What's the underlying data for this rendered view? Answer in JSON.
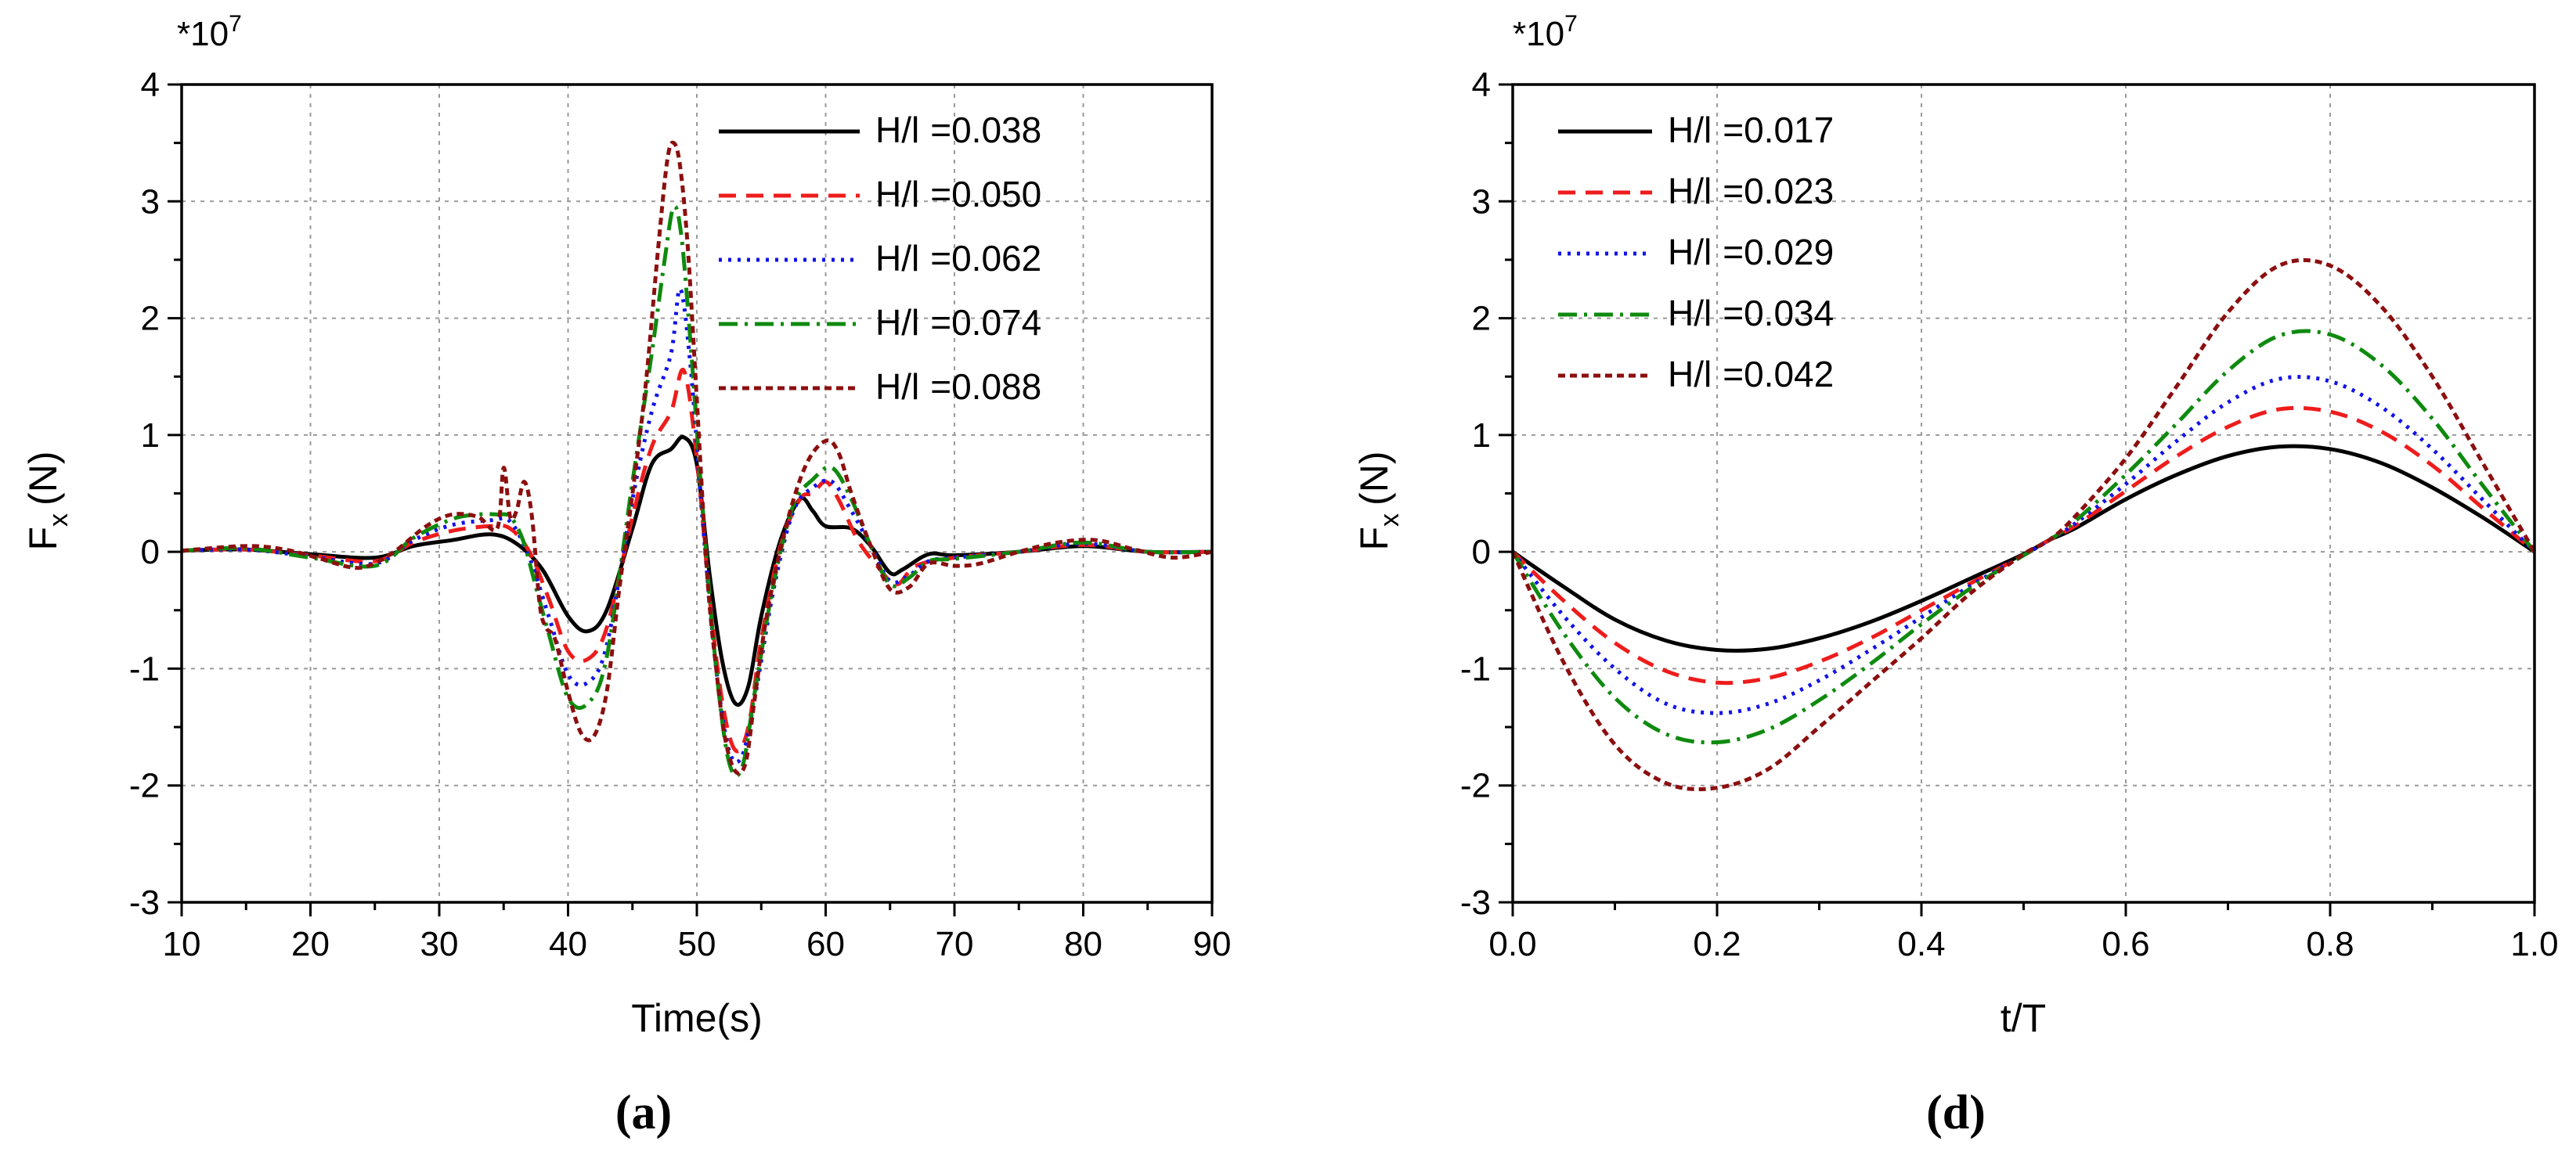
{
  "chart_data": [
    {
      "type": "line",
      "panel_label": "(a)",
      "xlabel": "Time(s)",
      "ylabel": "F",
      "ylabel_sub": "x",
      "ylabel_unit": "(N)",
      "y_scale_label": "*10",
      "y_scale_exp": "7",
      "xlim": [
        10,
        90
      ],
      "ylim": [
        -3,
        4
      ],
      "x_ticks": [
        10,
        20,
        30,
        40,
        50,
        60,
        70,
        80,
        90
      ],
      "x_tick_labels": [
        "10",
        "20",
        "30",
        "40",
        "50",
        "60",
        "70",
        "80",
        "90"
      ],
      "y_ticks": [
        -3,
        -2,
        -1,
        0,
        1,
        2,
        3,
        4
      ],
      "y_tick_labels": [
        "-3",
        "-2",
        "-1",
        "0",
        "1",
        "2",
        "3",
        "4"
      ],
      "grid": true,
      "legend_position": "top-right",
      "series": [
        {
          "name": "H/l =0.038",
          "legend_param": "H/l",
          "legend_value": "=0.038",
          "color": "#000000",
          "dash": "none",
          "x": [
            10,
            15,
            20,
            25,
            28,
            31,
            34,
            36,
            38,
            40,
            41.5,
            43,
            45,
            46.5,
            48,
            49,
            50,
            51,
            52,
            53,
            54,
            55,
            56.5,
            58,
            59,
            60,
            62,
            63.5,
            65,
            66,
            68,
            70,
            75,
            80,
            85,
            90
          ],
          "y": [
            0.01,
            0.02,
            -0.02,
            -0.05,
            0.05,
            0.1,
            0.15,
            0.07,
            -0.15,
            -0.55,
            -0.68,
            -0.5,
            0.2,
            0.75,
            0.88,
            0.98,
            0.75,
            -0.2,
            -0.95,
            -1.3,
            -1.15,
            -0.55,
            0.1,
            0.45,
            0.35,
            0.22,
            0.2,
            0.05,
            -0.18,
            -0.15,
            -0.02,
            -0.03,
            0.0,
            0.05,
            0.0,
            0.0
          ]
        },
        {
          "name": "H/l =0.050",
          "legend_param": "H/l",
          "legend_value": "=0.050",
          "color": "#ee1c1c",
          "dash": "22 13",
          "x": [
            10,
            15,
            20,
            25,
            28,
            31,
            34,
            35.5,
            37,
            38.5,
            40,
            41.5,
            43,
            45,
            46.5,
            48,
            49,
            50,
            51,
            52,
            53,
            54,
            55,
            56.5,
            58,
            59,
            60,
            61,
            62.5,
            64,
            65.5,
            67,
            70,
            75,
            80,
            85,
            90
          ],
          "y": [
            0.01,
            0.02,
            -0.03,
            -0.08,
            0.08,
            0.18,
            0.22,
            0.2,
            0.0,
            -0.4,
            -0.85,
            -0.92,
            -0.65,
            0.3,
            0.9,
            1.2,
            1.55,
            0.8,
            -0.4,
            -1.3,
            -1.7,
            -1.5,
            -0.75,
            0.05,
            0.45,
            0.5,
            0.6,
            0.45,
            0.1,
            -0.12,
            -0.28,
            -0.12,
            -0.05,
            0.0,
            0.06,
            0.0,
            0.0
          ]
        },
        {
          "name": "H/l =0.062",
          "legend_param": "H/l",
          "legend_value": "=0.062",
          "color": "#1212e8",
          "dash": "4 8",
          "x": [
            10,
            15,
            20,
            25,
            28,
            31,
            34,
            35.5,
            37,
            38.5,
            40,
            41.5,
            43,
            45,
            46.5,
            48,
            48.7,
            49.5,
            50.5,
            51.5,
            52.5,
            53.5,
            54.5,
            56,
            57.5,
            59,
            60.5,
            62,
            63.5,
            65,
            66.5,
            68,
            70,
            75,
            80,
            85,
            90
          ],
          "y": [
            0.01,
            0.02,
            -0.04,
            -0.1,
            0.1,
            0.23,
            0.27,
            0.26,
            -0.05,
            -0.55,
            -1.05,
            -1.12,
            -0.8,
            0.45,
            1.2,
            1.7,
            2.25,
            1.6,
            0.2,
            -1.0,
            -1.7,
            -1.75,
            -1.25,
            -0.3,
            0.35,
            0.55,
            0.6,
            0.35,
            0.05,
            -0.25,
            -0.2,
            -0.08,
            -0.05,
            0.0,
            0.07,
            0.0,
            0.0
          ]
        },
        {
          "name": "H/l =0.074",
          "legend_param": "H/l",
          "legend_value": "=0.074",
          "color": "#0f8a0f",
          "dash": "24 9 4 9",
          "x": [
            10,
            15,
            20,
            25,
            28,
            31,
            33,
            34.5,
            35.5,
            36.5,
            37.5,
            38.5,
            40,
            41.5,
            43,
            45,
            46.5,
            47.5,
            48.2,
            48.8,
            49.5,
            50.5,
            51.5,
            52.5,
            53.5,
            54.5,
            56,
            57.5,
            59,
            60.5,
            62,
            63.5,
            65,
            66.5,
            68,
            70,
            75,
            80,
            85,
            90
          ],
          "y": [
            0.01,
            0.03,
            -0.05,
            -0.12,
            0.12,
            0.28,
            0.32,
            0.32,
            0.3,
            0.1,
            -0.3,
            -0.7,
            -1.25,
            -1.3,
            -0.9,
            0.6,
            1.7,
            2.5,
            2.95,
            2.7,
            1.8,
            0.3,
            -1.0,
            -1.8,
            -1.85,
            -1.2,
            -0.25,
            0.4,
            0.62,
            0.72,
            0.45,
            0.05,
            -0.28,
            -0.22,
            -0.08,
            -0.06,
            0.0,
            0.08,
            0.0,
            0.0
          ]
        },
        {
          "name": "H/l =0.088",
          "legend_param": "H/l",
          "legend_value": "=0.088",
          "color": "#8c0f0f",
          "dash": "9 6",
          "x": [
            10,
            15,
            18,
            20.5,
            23,
            24.5,
            26.5,
            29,
            31,
            33,
            34.5,
            35,
            35.5,
            36,
            36.6,
            37.2,
            37.8,
            38.3,
            39,
            40,
            41,
            42,
            43,
            44,
            45,
            46,
            47,
            47.7,
            48.2,
            48.7,
            49.3,
            50,
            50.8,
            51.5,
            52.2,
            53,
            53.8,
            54.5,
            55.5,
            57,
            58.5,
            60,
            61,
            62,
            63.5,
            65,
            66.5,
            68,
            70,
            72,
            75,
            78,
            81,
            84,
            87,
            90
          ],
          "y": [
            0.01,
            0.05,
            0.02,
            -0.05,
            -0.13,
            -0.12,
            0.0,
            0.22,
            0.32,
            0.3,
            0.2,
            0.72,
            0.3,
            0.35,
            0.6,
            0.3,
            -0.45,
            -0.65,
            -0.75,
            -1.2,
            -1.55,
            -1.58,
            -1.2,
            -0.3,
            0.5,
            1.4,
            2.6,
            3.35,
            3.5,
            3.3,
            2.6,
            1.3,
            -0.2,
            -1.0,
            -1.6,
            -1.88,
            -1.8,
            -1.25,
            -0.5,
            0.25,
            0.75,
            0.95,
            0.85,
            0.5,
            0.05,
            -0.32,
            -0.3,
            -0.1,
            -0.12,
            -0.1,
            0.0,
            0.08,
            0.1,
            0.02,
            -0.05,
            0.0
          ]
        }
      ]
    },
    {
      "type": "line",
      "panel_label": "(d)",
      "xlabel": "t/T",
      "ylabel": "F",
      "ylabel_sub": "x",
      "ylabel_unit": "(N)",
      "y_scale_label": "*10",
      "y_scale_exp": "7",
      "xlim": [
        0.0,
        1.0
      ],
      "ylim": [
        -3,
        4
      ],
      "x_ticks": [
        0.0,
        0.2,
        0.4,
        0.6,
        0.8,
        1.0
      ],
      "x_tick_labels": [
        "0.0",
        "0.2",
        "0.4",
        "0.6",
        "0.8",
        "1.0"
      ],
      "y_ticks": [
        -3,
        -2,
        -1,
        0,
        1,
        2,
        3,
        4
      ],
      "y_tick_labels": [
        "-3",
        "-2",
        "-1",
        "0",
        "1",
        "2",
        "3",
        "4"
      ],
      "grid": true,
      "legend_position": "top-left",
      "series": [
        {
          "name": "H/l =0.017",
          "legend_param": "H/l",
          "legend_value": "=0.017",
          "color": "#000000",
          "dash": "none",
          "x": [
            0,
            0.05,
            0.1,
            0.15,
            0.2,
            0.25,
            0.3,
            0.35,
            0.4,
            0.45,
            0.5,
            0.525,
            0.55,
            0.6,
            0.65,
            0.7,
            0.75,
            0.8,
            0.85,
            0.9,
            0.95,
            1.0
          ],
          "y": [
            0,
            -0.3,
            -0.58,
            -0.76,
            -0.84,
            -0.83,
            -0.74,
            -0.6,
            -0.42,
            -0.22,
            -0.02,
            0.1,
            0.2,
            0.45,
            0.66,
            0.82,
            0.9,
            0.88,
            0.76,
            0.55,
            0.29,
            0
          ]
        },
        {
          "name": "H/l =0.023",
          "legend_param": "H/l",
          "legend_value": "=0.023",
          "color": "#ee1c1c",
          "dash": "22 13",
          "x": [
            0,
            0.05,
            0.1,
            0.15,
            0.2,
            0.25,
            0.3,
            0.35,
            0.4,
            0.45,
            0.5,
            0.525,
            0.55,
            0.6,
            0.65,
            0.7,
            0.75,
            0.8,
            0.85,
            0.9,
            0.95,
            1.0
          ],
          "y": [
            0,
            -0.42,
            -0.78,
            -1.02,
            -1.12,
            -1.08,
            -0.94,
            -0.74,
            -0.5,
            -0.26,
            -0.03,
            0.1,
            0.22,
            0.52,
            0.82,
            1.07,
            1.22,
            1.2,
            1.03,
            0.74,
            0.37,
            0
          ]
        },
        {
          "name": "H/l =0.029",
          "legend_param": "H/l",
          "legend_value": "=0.029",
          "color": "#1212e8",
          "dash": "4 8",
          "x": [
            0,
            0.05,
            0.1,
            0.15,
            0.2,
            0.25,
            0.3,
            0.35,
            0.4,
            0.45,
            0.5,
            0.525,
            0.55,
            0.6,
            0.65,
            0.7,
            0.75,
            0.8,
            0.85,
            0.9,
            0.95,
            1.0
          ],
          "y": [
            0,
            -0.55,
            -1.0,
            -1.3,
            -1.38,
            -1.3,
            -1.1,
            -0.84,
            -0.56,
            -0.28,
            -0.03,
            0.1,
            0.24,
            0.58,
            0.95,
            1.28,
            1.48,
            1.46,
            1.24,
            0.88,
            0.44,
            0
          ]
        },
        {
          "name": "H/l =0.034",
          "legend_param": "H/l",
          "legend_value": "=0.034",
          "color": "#0f8a0f",
          "dash": "24 9 4 9",
          "x": [
            0,
            0.05,
            0.1,
            0.15,
            0.2,
            0.25,
            0.3,
            0.35,
            0.4,
            0.45,
            0.5,
            0.525,
            0.55,
            0.6,
            0.65,
            0.7,
            0.75,
            0.8,
            0.85,
            0.9,
            0.95,
            1.0
          ],
          "y": [
            0,
            -0.7,
            -1.25,
            -1.56,
            -1.63,
            -1.52,
            -1.27,
            -0.96,
            -0.62,
            -0.3,
            -0.03,
            0.1,
            0.26,
            0.66,
            1.1,
            1.55,
            1.85,
            1.86,
            1.6,
            1.14,
            0.56,
            0
          ]
        },
        {
          "name": "H/l =0.042",
          "legend_param": "H/l",
          "legend_value": "=0.042",
          "color": "#8c0f0f",
          "dash": "9 6",
          "x": [
            0,
            0.05,
            0.1,
            0.15,
            0.2,
            0.25,
            0.3,
            0.35,
            0.4,
            0.45,
            0.5,
            0.525,
            0.55,
            0.6,
            0.65,
            0.7,
            0.75,
            0.8,
            0.85,
            0.9,
            0.95,
            1.0
          ],
          "y": [
            0,
            -0.95,
            -1.65,
            -1.98,
            -2.02,
            -1.86,
            -1.5,
            -1.12,
            -0.74,
            -0.34,
            -0.02,
            0.1,
            0.3,
            0.8,
            1.42,
            2.05,
            2.45,
            2.45,
            2.1,
            1.5,
            0.75,
            0
          ]
        }
      ]
    }
  ]
}
